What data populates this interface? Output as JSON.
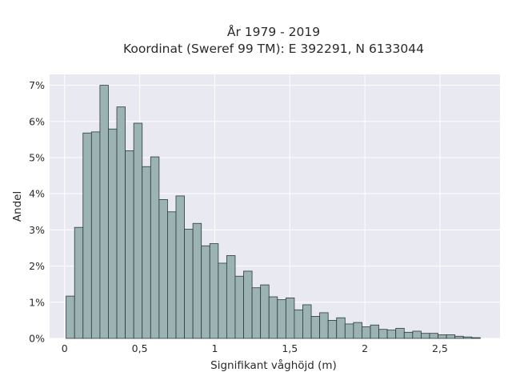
{
  "chart_data": {
    "type": "bar",
    "title_line1": "År 1979 - 2019",
    "title_line2": "Koordinat (Sweref 99 TM): E 392291, N 6133044",
    "xlabel": "Signifikant våghöjd (m)",
    "ylabel": "Andel",
    "xlim": [
      -0.1,
      2.9
    ],
    "ylim": [
      0,
      7.3
    ],
    "x_ticks": [
      0,
      0.5,
      1,
      1.5,
      2,
      2.5
    ],
    "x_tick_labels": [
      "0",
      "0,5",
      "1",
      "1,5",
      "2",
      "2,5"
    ],
    "y_ticks": [
      0,
      1,
      2,
      3,
      4,
      5,
      6,
      7
    ],
    "y_tick_labels": [
      "0%",
      "1%",
      "2%",
      "3%",
      "4%",
      "5%",
      "6%",
      "7%"
    ],
    "bin_start": 0.01,
    "bin_width": 0.0563,
    "values_percent": [
      1.17,
      3.07,
      5.68,
      5.71,
      7.0,
      5.79,
      6.4,
      5.19,
      5.95,
      4.75,
      5.02,
      3.84,
      3.5,
      3.94,
      3.02,
      3.18,
      2.56,
      2.62,
      2.08,
      2.29,
      1.72,
      1.86,
      1.4,
      1.48,
      1.15,
      1.07,
      1.12,
      0.79,
      0.93,
      0.61,
      0.71,
      0.5,
      0.57,
      0.4,
      0.44,
      0.32,
      0.37,
      0.25,
      0.23,
      0.28,
      0.17,
      0.2,
      0.14,
      0.14,
      0.1,
      0.1,
      0.06,
      0.04,
      0.02
    ],
    "grid": true,
    "colors": {
      "bar_fill": "#9bb3b3",
      "bar_edge": "#2e3a3a",
      "plot_bg": "#e9e9f1",
      "grid": "#ffffff"
    }
  }
}
